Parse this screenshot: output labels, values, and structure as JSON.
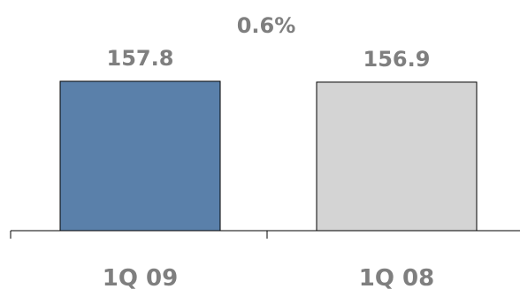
{
  "chart_data": {
    "type": "bar",
    "categories": [
      "1Q 09",
      "1Q 08"
    ],
    "values": [
      157.8,
      156.9
    ],
    "value_labels": [
      "157.8",
      "156.9"
    ],
    "annotation": "0.6%",
    "bar_colors": [
      "#5a80aa",
      "#d4d4d4"
    ],
    "bar_border_color": "#000000",
    "text_color": "#7f7f7f",
    "grid": false,
    "legend": "none"
  }
}
